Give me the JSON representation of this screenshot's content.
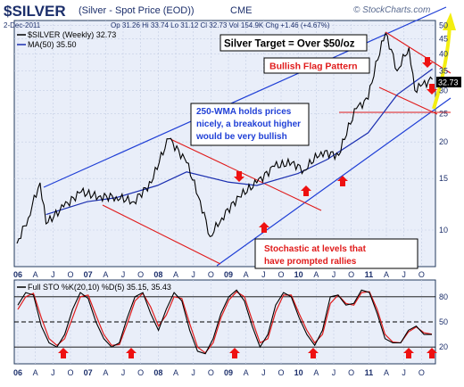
{
  "header": {
    "symbol": "$SILVER",
    "description": "(Silver - Spot Price (EOD))",
    "exchange": "CME",
    "watermark": "© StockCharts.com",
    "date": "2-Dec-2011",
    "quote": "Op 31.26  Hi 33.74  Lo 31.12  Cl 32.73  Vol 154.9K  Chg +1.46 (+4.67%)"
  },
  "chart_data": [
    {
      "type": "line",
      "panel": "price",
      "legend": [
        "$SILVER (Weekly) 32.73",
        "MA(50) 35.50"
      ],
      "x_ticks": [
        "06",
        "A",
        "J",
        "O",
        "07",
        "A",
        "J",
        "O",
        "08",
        "A",
        "J",
        "O",
        "09",
        "A",
        "J",
        "O",
        "10",
        "A",
        "J",
        "O",
        "11",
        "A",
        "J",
        "O"
      ],
      "y_ticks": [
        10,
        15,
        20,
        25,
        30,
        35,
        40,
        45,
        50
      ],
      "y_scale": "log",
      "ylim": [
        7.5,
        52
      ],
      "current_value": 32.73,
      "series": [
        {
          "name": "$SILVER (Weekly)",
          "x": [
            "2006-01",
            "2006-03",
            "2006-05",
            "2006-06",
            "2006-09",
            "2006-12",
            "2007-03",
            "2007-06",
            "2007-09",
            "2007-12",
            "2008-03",
            "2008-06",
            "2008-08",
            "2008-10",
            "2008-12",
            "2009-03",
            "2009-06",
            "2009-09",
            "2009-12",
            "2010-02",
            "2010-05",
            "2010-08",
            "2010-11",
            "2011-01",
            "2011-04",
            "2011-06",
            "2011-08",
            "2011-09",
            "2011-10",
            "2011-12"
          ],
          "values": [
            9,
            11,
            14.5,
            10.5,
            12,
            13.5,
            13,
            13,
            12.5,
            14.5,
            20.5,
            17,
            13,
            9.5,
            11,
            13,
            14.5,
            16.5,
            17,
            16,
            18.5,
            18,
            26,
            28,
            47,
            35,
            42,
            30,
            31,
            32.73
          ]
        },
        {
          "name": "MA(50)",
          "x": [
            "2006-06",
            "2007-01",
            "2007-06",
            "2008-01",
            "2008-06",
            "2009-01",
            "2009-06",
            "2010-01",
            "2010-06",
            "2011-01",
            "2011-06",
            "2011-12"
          ],
          "values": [
            11.3,
            12.5,
            12.9,
            14.2,
            15.8,
            14.6,
            14.2,
            15.6,
            17.4,
            21.5,
            29,
            35.5
          ]
        }
      ],
      "annotations": [
        "Silver Target = Over $50/oz",
        "Bullish Flag Pattern",
        "250-WMA holds prices nicely, a breakout higher would be very bullish",
        "Stochastic at levels that have prompted rallies"
      ]
    },
    {
      "type": "line",
      "panel": "stochastic",
      "legend": "Full STO %K(20,10) %D(5) 35.15, 35.43",
      "x_ticks": [
        "06",
        "A",
        "J",
        "O",
        "07",
        "A",
        "J",
        "O",
        "08",
        "A",
        "J",
        "O",
        "09",
        "A",
        "J",
        "O",
        "10",
        "A",
        "J",
        "O",
        "11",
        "A",
        "J",
        "O"
      ],
      "y_ticks": [
        20,
        50,
        80
      ],
      "ylim": [
        0,
        100
      ],
      "series": [
        {
          "name": "%K(20,10)",
          "values": [
            70,
            85,
            82,
            45,
            25,
            20,
            35,
            65,
            85,
            78,
            50,
            30,
            20,
            25,
            55,
            80,
            85,
            60,
            40,
            65,
            85,
            75,
            40,
            15,
            12,
            30,
            60,
            80,
            88,
            75,
            45,
            20,
            35,
            70,
            85,
            80,
            55,
            35,
            22,
            40,
            80,
            82,
            70,
            72,
            88,
            85,
            60,
            30,
            25,
            25,
            40,
            45,
            35,
            35
          ]
        },
        {
          "name": "%D(5)",
          "values": [
            65,
            80,
            84,
            55,
            30,
            22,
            30,
            55,
            80,
            82,
            58,
            35,
            22,
            23,
            48,
            75,
            84,
            68,
            45,
            58,
            80,
            78,
            48,
            20,
            13,
            25,
            55,
            76,
            86,
            80,
            52,
            25,
            30,
            62,
            82,
            82,
            60,
            40,
            25,
            35,
            72,
            82,
            72,
            70,
            85,
            86,
            65,
            35,
            26,
            25,
            38,
            44,
            37,
            35.43
          ]
        }
      ]
    }
  ]
}
